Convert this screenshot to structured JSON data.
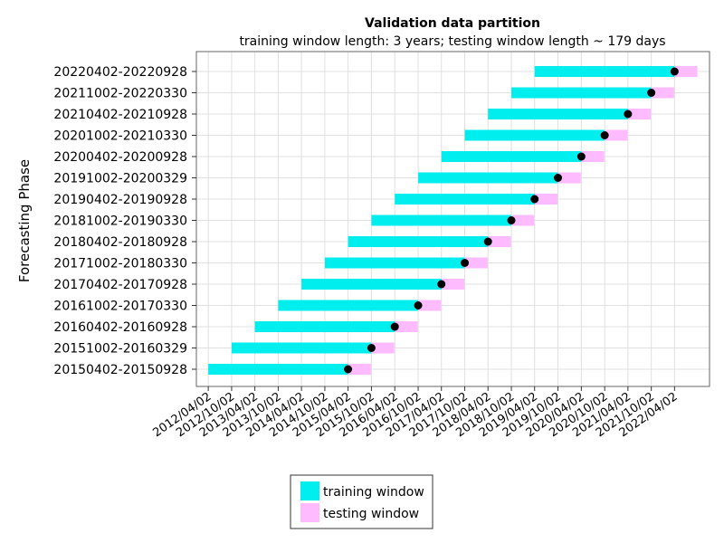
{
  "chart_data": {
    "type": "gantt",
    "title": "Validation data partition",
    "subtitle": "training window length: 3 years; testing window length ~ 179 days",
    "ylabel": "Forecasting Phase",
    "xlabel": "",
    "x_ticks": [
      "2012/04/02",
      "2012/10/02",
      "2013/04/02",
      "2013/10/02",
      "2014/04/02",
      "2014/10/02",
      "2015/04/02",
      "2015/10/02",
      "2016/04/02",
      "2016/10/02",
      "2017/04/02",
      "2017/10/02",
      "2018/04/02",
      "2018/10/02",
      "2019/04/02",
      "2019/10/02",
      "2020/04/02",
      "2020/10/02",
      "2021/04/02",
      "2021/10/02",
      "2022/04/02"
    ],
    "x_range": [
      "2011/12/31",
      "2023/01/01"
    ],
    "grid": true,
    "legend_position": "bottom",
    "colors": {
      "training": "#00eeee",
      "testing": "#ffbbff",
      "marker": "#000000"
    },
    "legend": [
      {
        "key": "training",
        "label": "training window"
      },
      {
        "key": "testing",
        "label": "testing window"
      }
    ],
    "phases": [
      {
        "label": "20150402-20150928",
        "train_start": "2012/04/02",
        "train_end": "2015/04/01",
        "test_start": "2015/04/02",
        "test_end": "2015/09/28"
      },
      {
        "label": "20151002-20160329",
        "train_start": "2012/10/02",
        "train_end": "2015/10/01",
        "test_start": "2015/10/02",
        "test_end": "2016/03/29"
      },
      {
        "label": "20160402-20160928",
        "train_start": "2013/04/02",
        "train_end": "2016/04/01",
        "test_start": "2016/04/02",
        "test_end": "2016/09/28"
      },
      {
        "label": "20161002-20170330",
        "train_start": "2013/10/02",
        "train_end": "2016/10/01",
        "test_start": "2016/10/02",
        "test_end": "2017/03/30"
      },
      {
        "label": "20170402-20170928",
        "train_start": "2014/04/02",
        "train_end": "2017/04/01",
        "test_start": "2017/04/02",
        "test_end": "2017/09/28"
      },
      {
        "label": "20171002-20180330",
        "train_start": "2014/10/02",
        "train_end": "2017/10/01",
        "test_start": "2017/10/02",
        "test_end": "2018/03/30"
      },
      {
        "label": "20180402-20180928",
        "train_start": "2015/04/02",
        "train_end": "2018/04/01",
        "test_start": "2018/04/02",
        "test_end": "2018/09/28"
      },
      {
        "label": "20181002-20190330",
        "train_start": "2015/10/02",
        "train_end": "2018/10/01",
        "test_start": "2018/10/02",
        "test_end": "2019/03/30"
      },
      {
        "label": "20190402-20190928",
        "train_start": "2016/04/02",
        "train_end": "2019/04/01",
        "test_start": "2019/04/02",
        "test_end": "2019/09/28"
      },
      {
        "label": "20191002-20200329",
        "train_start": "2016/10/02",
        "train_end": "2019/10/01",
        "test_start": "2019/10/02",
        "test_end": "2020/03/29"
      },
      {
        "label": "20200402-20200928",
        "train_start": "2017/04/02",
        "train_end": "2020/04/01",
        "test_start": "2020/04/02",
        "test_end": "2020/09/28"
      },
      {
        "label": "20201002-20210330",
        "train_start": "2017/10/02",
        "train_end": "2020/10/01",
        "test_start": "2020/10/02",
        "test_end": "2021/03/30"
      },
      {
        "label": "20210402-20210928",
        "train_start": "2018/04/02",
        "train_end": "2021/04/01",
        "test_start": "2021/04/02",
        "test_end": "2021/09/28"
      },
      {
        "label": "20211002-20220330",
        "train_start": "2018/10/02",
        "train_end": "2021/10/01",
        "test_start": "2021/10/02",
        "test_end": "2022/03/30"
      },
      {
        "label": "20220402-20220928",
        "train_start": "2019/04/02",
        "train_end": "2022/04/01",
        "test_start": "2022/04/02",
        "test_end": "2022/09/28"
      }
    ]
  }
}
